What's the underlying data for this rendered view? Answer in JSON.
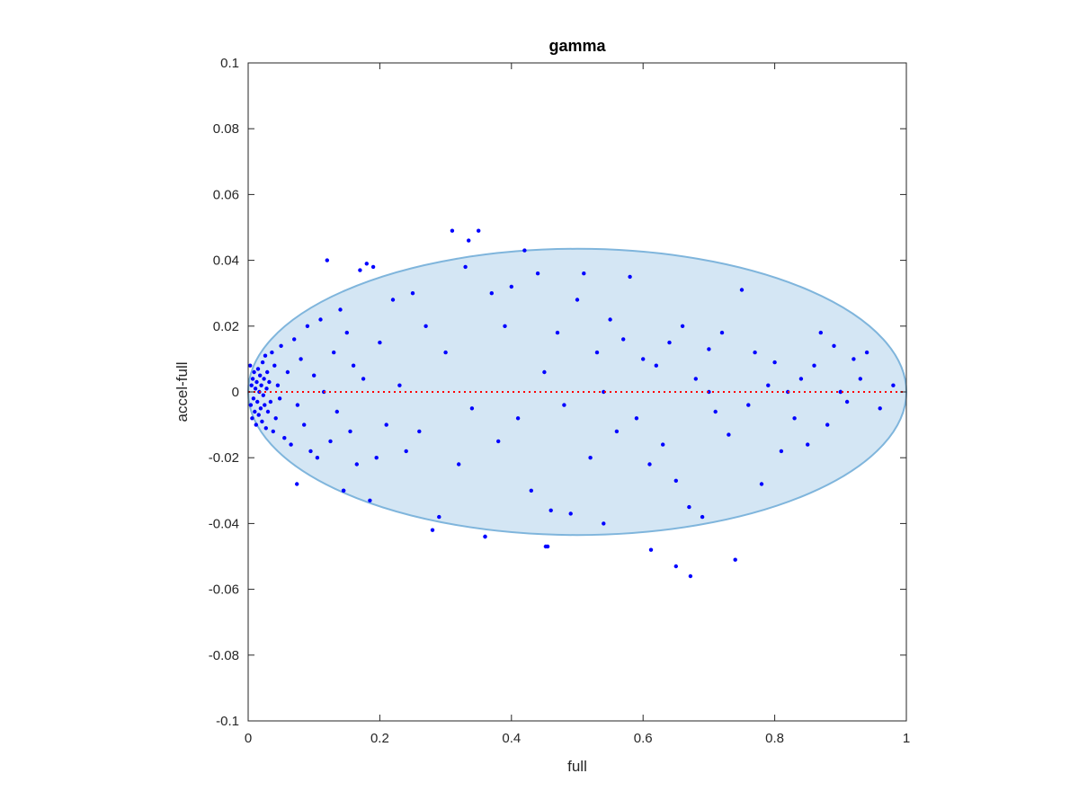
{
  "chart_data": {
    "type": "scatter",
    "title": "gamma",
    "xlabel": "full",
    "ylabel": "accel-full",
    "xlim": [
      0,
      1
    ],
    "ylim": [
      -0.1,
      0.1
    ],
    "xticks": [
      0,
      0.2,
      0.4,
      0.6,
      0.8,
      1
    ],
    "xtick_labels": [
      "0",
      "0.2",
      "0.4",
      "0.6",
      "0.8",
      "1"
    ],
    "yticks": [
      -0.1,
      -0.08,
      -0.06,
      -0.04,
      -0.02,
      0,
      0.02,
      0.04,
      0.06,
      0.08,
      0.1
    ],
    "ytick_labels": [
      "-0.1",
      "-0.08",
      "-0.06",
      "-0.04",
      "-0.02",
      "0",
      "0.02",
      "0.04",
      "0.06",
      "0.08",
      "0.1"
    ],
    "grid": false,
    "reference_line": {
      "y": 0,
      "style": "dotted",
      "color": "#ff0000"
    },
    "region": {
      "shape": "ellipse",
      "cx": 0.5,
      "cy": 0,
      "rx": 0.5,
      "ry": 0.0435,
      "fill": "#d4e6f4",
      "stroke": "#7fb5dc"
    },
    "marker_color": "#0000ff",
    "series": [
      {
        "points": [
          [
            0.003,
            0.008
          ],
          [
            0.004,
            -0.004
          ],
          [
            0.005,
            0.002
          ],
          [
            0.006,
            -0.008
          ],
          [
            0.007,
            0.004
          ],
          [
            0.008,
            -0.002
          ],
          [
            0.009,
            0.006
          ],
          [
            0.01,
            -0.006
          ],
          [
            0.011,
            0.001
          ],
          [
            0.012,
            -0.01
          ],
          [
            0.013,
            0.003
          ],
          [
            0.014,
            -0.003
          ],
          [
            0.015,
            0.007
          ],
          [
            0.016,
            -0.007
          ],
          [
            0.017,
            0.0
          ],
          [
            0.018,
            0.005
          ],
          [
            0.019,
            -0.005
          ],
          [
            0.02,
            0.002
          ],
          [
            0.021,
            -0.009
          ],
          [
            0.022,
            0.009
          ],
          [
            0.023,
            -0.001
          ],
          [
            0.024,
            0.004
          ],
          [
            0.025,
            -0.004
          ],
          [
            0.026,
            0.011
          ],
          [
            0.027,
            -0.011
          ],
          [
            0.028,
            0.001
          ],
          [
            0.029,
            0.006
          ],
          [
            0.03,
            -0.006
          ],
          [
            0.032,
            0.003
          ],
          [
            0.034,
            -0.003
          ],
          [
            0.036,
            0.012
          ],
          [
            0.038,
            -0.012
          ],
          [
            0.04,
            0.008
          ],
          [
            0.042,
            -0.008
          ],
          [
            0.045,
            0.002
          ],
          [
            0.048,
            -0.002
          ],
          [
            0.05,
            0.014
          ],
          [
            0.055,
            -0.014
          ],
          [
            0.06,
            0.006
          ],
          [
            0.065,
            -0.016
          ],
          [
            0.07,
            0.016
          ],
          [
            0.075,
            -0.004
          ],
          [
            0.08,
            0.01
          ],
          [
            0.085,
            -0.01
          ],
          [
            0.09,
            0.02
          ],
          [
            0.095,
            -0.018
          ],
          [
            0.1,
            0.005
          ],
          [
            0.105,
            -0.02
          ],
          [
            0.11,
            0.022
          ],
          [
            0.115,
            0.0
          ],
          [
            0.12,
            0.04
          ],
          [
            0.125,
            -0.015
          ],
          [
            0.13,
            0.012
          ],
          [
            0.135,
            -0.006
          ],
          [
            0.14,
            0.025
          ],
          [
            0.145,
            -0.03
          ],
          [
            0.15,
            0.018
          ],
          [
            0.155,
            -0.012
          ],
          [
            0.16,
            0.008
          ],
          [
            0.165,
            -0.022
          ],
          [
            0.17,
            0.037
          ],
          [
            0.175,
            0.004
          ],
          [
            0.18,
            0.039
          ],
          [
            0.185,
            -0.033
          ],
          [
            0.19,
            0.038
          ],
          [
            0.195,
            -0.02
          ],
          [
            0.2,
            0.015
          ],
          [
            0.21,
            -0.01
          ],
          [
            0.22,
            0.028
          ],
          [
            0.23,
            0.002
          ],
          [
            0.24,
            -0.018
          ],
          [
            0.25,
            0.03
          ],
          [
            0.26,
            -0.012
          ],
          [
            0.27,
            0.02
          ],
          [
            0.28,
            -0.042
          ],
          [
            0.29,
            -0.038
          ],
          [
            0.3,
            0.012
          ],
          [
            0.31,
            0.049
          ],
          [
            0.32,
            -0.022
          ],
          [
            0.33,
            0.038
          ],
          [
            0.335,
            0.046
          ],
          [
            0.34,
            -0.005
          ],
          [
            0.35,
            0.049
          ],
          [
            0.36,
            -0.044
          ],
          [
            0.37,
            0.03
          ],
          [
            0.38,
            -0.015
          ],
          [
            0.39,
            0.02
          ],
          [
            0.4,
            0.032
          ],
          [
            0.41,
            -0.008
          ],
          [
            0.42,
            0.043
          ],
          [
            0.43,
            -0.03
          ],
          [
            0.44,
            0.036
          ],
          [
            0.45,
            0.006
          ],
          [
            0.455,
            -0.047
          ],
          [
            0.46,
            -0.036
          ],
          [
            0.47,
            0.018
          ],
          [
            0.48,
            -0.004
          ],
          [
            0.49,
            -0.037
          ],
          [
            0.5,
            0.028
          ],
          [
            0.51,
            0.036
          ],
          [
            0.52,
            -0.02
          ],
          [
            0.53,
            0.012
          ],
          [
            0.54,
            -0.04
          ],
          [
            0.55,
            0.022
          ],
          [
            0.56,
            -0.012
          ],
          [
            0.57,
            0.016
          ],
          [
            0.58,
            0.035
          ],
          [
            0.59,
            -0.008
          ],
          [
            0.6,
            0.01
          ],
          [
            0.61,
            -0.022
          ],
          [
            0.62,
            0.008
          ],
          [
            0.63,
            -0.016
          ],
          [
            0.64,
            0.015
          ],
          [
            0.65,
            -0.027
          ],
          [
            0.66,
            0.02
          ],
          [
            0.67,
            -0.035
          ],
          [
            0.68,
            0.004
          ],
          [
            0.69,
            -0.038
          ],
          [
            0.7,
            0.013
          ],
          [
            0.71,
            -0.006
          ],
          [
            0.72,
            0.018
          ],
          [
            0.73,
            -0.013
          ],
          [
            0.74,
            -0.051
          ],
          [
            0.75,
            0.031
          ],
          [
            0.76,
            -0.004
          ],
          [
            0.77,
            0.012
          ],
          [
            0.78,
            -0.028
          ],
          [
            0.79,
            0.002
          ],
          [
            0.8,
            0.009
          ],
          [
            0.81,
            -0.018
          ],
          [
            0.82,
            0.0
          ],
          [
            0.83,
            -0.008
          ],
          [
            0.84,
            0.004
          ],
          [
            0.85,
            -0.016
          ],
          [
            0.86,
            0.008
          ],
          [
            0.87,
            0.018
          ],
          [
            0.88,
            -0.01
          ],
          [
            0.89,
            0.014
          ],
          [
            0.9,
            0.0
          ],
          [
            0.91,
            -0.003
          ],
          [
            0.92,
            0.01
          ],
          [
            0.93,
            0.004
          ],
          [
            0.94,
            0.012
          ],
          [
            0.96,
            -0.005
          ],
          [
            0.98,
            0.002
          ],
          [
            0.612,
            -0.048
          ],
          [
            0.65,
            -0.053
          ],
          [
            0.672,
            -0.056
          ],
          [
            0.074,
            -0.028
          ],
          [
            0.145,
            -0.03
          ],
          [
            0.452,
            -0.047
          ],
          [
            0.36,
            -0.044
          ],
          [
            0.54,
            0.0
          ],
          [
            0.7,
            0.0
          ],
          [
            0.9,
            0.0
          ]
        ]
      }
    ]
  }
}
